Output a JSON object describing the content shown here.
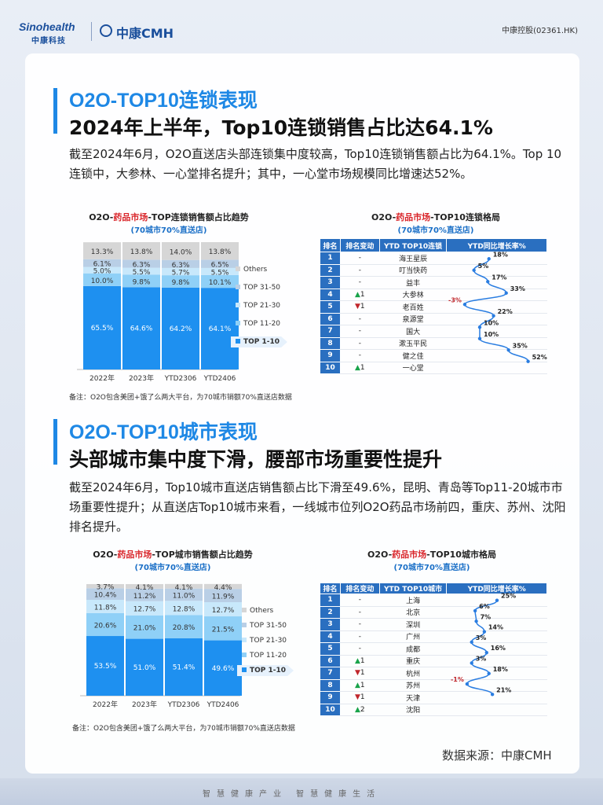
{
  "header": {
    "logo_en": "Sinohealth",
    "logo_cn": "中康科技",
    "logo_cmh": "中康CMH",
    "stock": "中康控股(02361.HK)"
  },
  "section1": {
    "title": "O2O-TOP10连锁表现",
    "subtitle": "2024年上半年，Top10连锁销售占比达64.1%",
    "paragraph": "截至2024年6月，O2O直送店头部连锁集中度较高，Top10连锁销售额占比为64.1%。Top 10连锁中，大参林、一心堂排名提升；其中，一心堂市场规模同比增速达52%。",
    "note": "备注：O2O包含美团+饿了么两大平台，为70城市销额70%直送店数据"
  },
  "section2": {
    "title": "O2O-TOP10城市表现",
    "subtitle": "头部城市集中度下滑，腰部市场重要性提升",
    "paragraph": "截至2024年6月，Top10城市直送店销售额占比下滑至49.6%，昆明、青岛等Top11-20城市市场重要性提升；从直送店Top10城市来看，一线城市位列O2O药品市场前四，重庆、苏州、沈阳排名提升。",
    "note": "备注：O2O包含美团+饿了么两大平台，为70城市销额70%直送店数据"
  },
  "source": "数据来源：中康CMH",
  "slogan": "智慧健康产业   智慧健康生活",
  "colors": {
    "accent": "#1e88e5",
    "top1_10": "#1e90f0",
    "top11_20": "#8fd0f7",
    "top21_30": "#c8e8fb",
    "top31_50": "#b9cfe6",
    "others": "#d6d6d6",
    "up": "#19a34a",
    "down": "#c0262b"
  },
  "chart_data": [
    {
      "type": "bar",
      "stacked": true,
      "title_prefix": "O2O-",
      "title_highlight": "药品市场",
      "title_suffix": "-TOP连锁销售额占比趋势",
      "subtitle": "(70城市70%直送店)",
      "categories": [
        "2022年",
        "2023年",
        "YTD2306",
        "YTD2406"
      ],
      "series": [
        {
          "name": "TOP 1-10",
          "values": [
            65.5,
            64.6,
            64.2,
            64.1
          ],
          "labels": [
            "65.5%",
            "64.6%",
            "64.2%",
            "64.1%"
          ]
        },
        {
          "name": "TOP 11-20",
          "values": [
            10.0,
            9.8,
            9.8,
            10.1
          ],
          "labels": [
            "10.0%",
            "9.8%",
            "9.8%",
            "10.1%"
          ]
        },
        {
          "name": "TOP 21-30",
          "values": [
            5.0,
            5.5,
            5.7,
            5.5
          ],
          "labels": [
            "5.0%",
            "5.5%",
            "5.7%",
            "5.5%"
          ]
        },
        {
          "name": "TOP 31-50",
          "values": [
            6.1,
            6.3,
            6.3,
            6.5
          ],
          "labels": [
            "6.1%",
            "6.3%",
            "6.3%",
            "6.5%"
          ]
        },
        {
          "name": "Others",
          "values": [
            13.3,
            13.8,
            14.0,
            13.8
          ],
          "labels": [
            "13.3%",
            "13.8%",
            "14.0%",
            "13.8%"
          ]
        }
      ],
      "legend": [
        "Others",
        "TOP 31-50",
        "TOP 21-30",
        "TOP 11-20",
        "TOP 1-10"
      ],
      "legend_placement": "right"
    },
    {
      "type": "table",
      "title_prefix": "O2O-",
      "title_highlight": "药品市场",
      "title_suffix": "-TOP10连锁格局",
      "subtitle": "(70城市70%直送店)",
      "columns": [
        "排名",
        "排名变动",
        "YTD TOP10连锁",
        "YTD同比增长率%"
      ],
      "rows": [
        {
          "rank": "1",
          "change": "-",
          "dir": "",
          "name": "海王星辰",
          "growth": 18,
          "growth_label": "18%"
        },
        {
          "rank": "2",
          "change": "-",
          "dir": "",
          "name": "叮当快药",
          "growth": 5,
          "growth_label": "5%"
        },
        {
          "rank": "3",
          "change": "-",
          "dir": "",
          "name": "益丰",
          "growth": 17,
          "growth_label": "17%"
        },
        {
          "rank": "4",
          "change": "1",
          "dir": "up",
          "name": "大参林",
          "growth": 33,
          "growth_label": "33%"
        },
        {
          "rank": "5",
          "change": "1",
          "dir": "down",
          "name": "老百姓",
          "growth": -3,
          "growth_label": "-3%"
        },
        {
          "rank": "6",
          "change": "-",
          "dir": "",
          "name": "泉源堂",
          "growth": 22,
          "growth_label": "22%"
        },
        {
          "rank": "7",
          "change": "-",
          "dir": "",
          "name": "国大",
          "growth": 10,
          "growth_label": "10%"
        },
        {
          "rank": "8",
          "change": "-",
          "dir": "",
          "name": "漱玉平民",
          "growth": 10,
          "growth_label": "10%"
        },
        {
          "rank": "9",
          "change": "-",
          "dir": "",
          "name": "健之佳",
          "growth": 35,
          "growth_label": "35%"
        },
        {
          "rank": "10",
          "change": "1",
          "dir": "up",
          "name": "一心堂",
          "growth": 52,
          "growth_label": "52%"
        }
      ]
    },
    {
      "type": "bar",
      "stacked": true,
      "title_prefix": "O2O-",
      "title_highlight": "药品市场",
      "title_suffix": "-TOP城市销售额占比趋势",
      "subtitle": "(70城市70%直送店)",
      "categories": [
        "2022年",
        "2023年",
        "YTD2306",
        "YTD2406"
      ],
      "series": [
        {
          "name": "TOP 1-10",
          "values": [
            53.5,
            51.0,
            51.4,
            49.6
          ],
          "labels": [
            "53.5%",
            "51.0%",
            "51.4%",
            "49.6%"
          ]
        },
        {
          "name": "TOP 11-20",
          "values": [
            20.6,
            21.0,
            20.8,
            21.5
          ],
          "labels": [
            "20.6%",
            "21.0%",
            "20.8%",
            "21.5%"
          ]
        },
        {
          "name": "TOP 21-30",
          "values": [
            11.8,
            12.7,
            12.8,
            12.7
          ],
          "labels": [
            "11.8%",
            "12.7%",
            "12.8%",
            "12.7%"
          ]
        },
        {
          "name": "TOP 31-50",
          "values": [
            10.4,
            11.2,
            11.0,
            11.9
          ],
          "labels": [
            "10.4%",
            "11.2%",
            "11.0%",
            "11.9%"
          ]
        },
        {
          "name": "Others",
          "values": [
            3.7,
            4.1,
            4.1,
            4.4
          ],
          "labels": [
            "3.7%",
            "4.1%",
            "4.1%",
            "4.4%"
          ]
        }
      ],
      "legend": [
        "Others",
        "TOP 31-50",
        "TOP 21-30",
        "TOP 11-20",
        "TOP 1-10"
      ],
      "legend_placement": "right"
    },
    {
      "type": "table",
      "title_prefix": "O2O-",
      "title_highlight": "药品市场",
      "title_suffix": "-TOP10城市格局",
      "subtitle": "(70城市70%直送店)",
      "columns": [
        "排名",
        "排名变动",
        "YTD TOP10城市",
        "YTD同比增长率%"
      ],
      "rows": [
        {
          "rank": "1",
          "change": "-",
          "dir": "",
          "name": "上海",
          "growth": 25,
          "growth_label": "25%"
        },
        {
          "rank": "2",
          "change": "-",
          "dir": "",
          "name": "北京",
          "growth": 6,
          "growth_label": "6%"
        },
        {
          "rank": "3",
          "change": "-",
          "dir": "",
          "name": "深圳",
          "growth": 7,
          "growth_label": "7%"
        },
        {
          "rank": "4",
          "change": "-",
          "dir": "",
          "name": "广州",
          "growth": 14,
          "growth_label": "14%"
        },
        {
          "rank": "5",
          "change": "-",
          "dir": "",
          "name": "成都",
          "growth": 3,
          "growth_label": "3%"
        },
        {
          "rank": "6",
          "change": "1",
          "dir": "up",
          "name": "重庆",
          "growth": 16,
          "growth_label": "16%"
        },
        {
          "rank": "7",
          "change": "1",
          "dir": "down",
          "name": "杭州",
          "growth": 3,
          "growth_label": "3%"
        },
        {
          "rank": "8",
          "change": "1",
          "dir": "up",
          "name": "苏州",
          "growth": 18,
          "growth_label": "18%"
        },
        {
          "rank": "9",
          "change": "1",
          "dir": "down",
          "name": "天津",
          "growth": -1,
          "growth_label": "-1%"
        },
        {
          "rank": "10",
          "change": "2",
          "dir": "up",
          "name": "沈阳",
          "growth": 21,
          "growth_label": "21%"
        }
      ]
    }
  ]
}
